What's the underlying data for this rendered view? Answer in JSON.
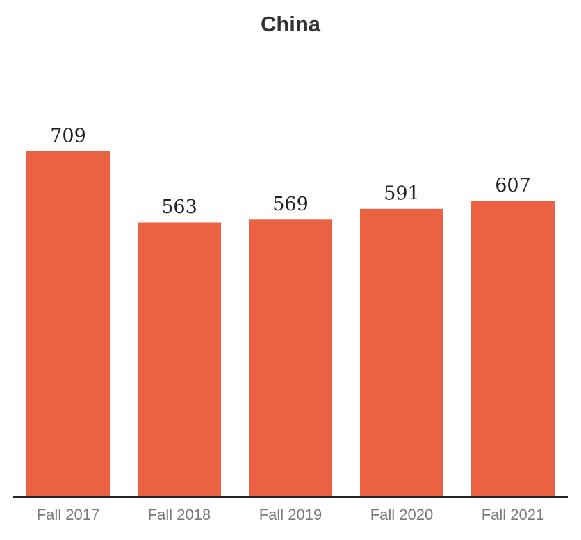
{
  "chart_data": {
    "type": "bar",
    "title": "China",
    "categories": [
      "Fall 2017",
      "Fall 2018",
      "Fall 2019",
      "Fall 2020",
      "Fall 2021"
    ],
    "values": [
      709,
      563,
      569,
      591,
      607
    ],
    "color": "#ea6241",
    "ylim": [
      0,
      800
    ]
  }
}
